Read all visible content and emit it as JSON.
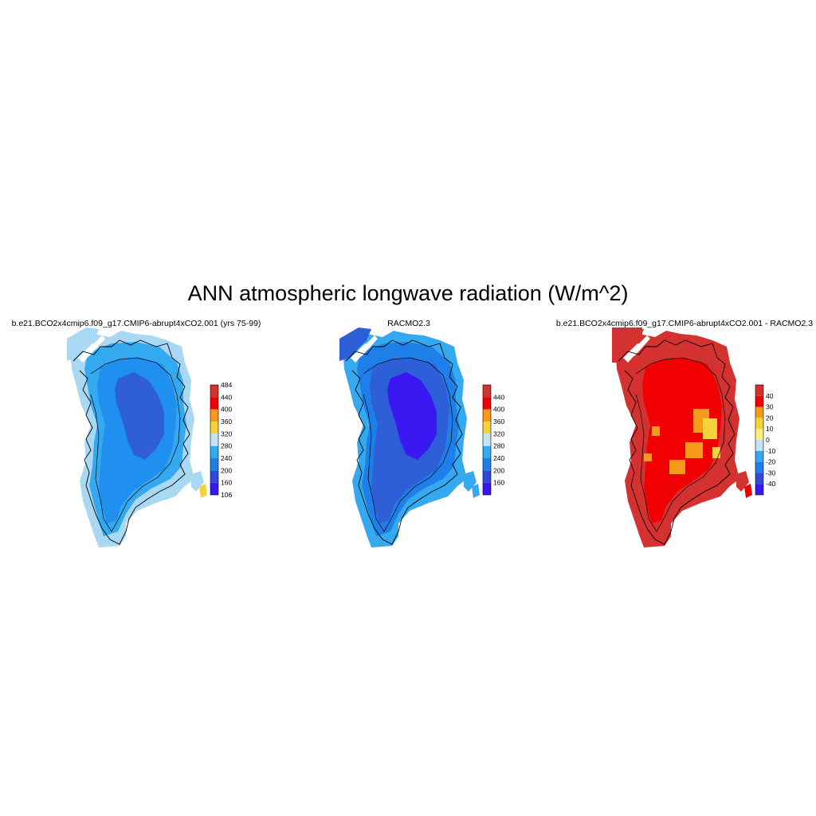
{
  "title": "ANN atmospheric longwave radiation (W/m^2)",
  "panels": [
    {
      "id": "model",
      "title": "b.e21.BCO2x4cmip6.f09_g17.CMIP6-abrupt4xCO2.001 (yrs 75-99)",
      "colorbar": {
        "colors": [
          "#3a18f2",
          "#2f4bd6",
          "#1f7fe8",
          "#35a9ef",
          "#c2e4f4",
          "#f7d33a",
          "#f59a1b",
          "#f00000",
          "#d43131"
        ],
        "labels": [
          "106",
          "160",
          "200",
          "240",
          "280",
          "320",
          "360",
          "400",
          "440",
          "484"
        ],
        "label_positions": "all-boundaries"
      },
      "colors": {
        "edge": "#a9d8f2",
        "outer": "#35a9ef",
        "mid": "#1f8ff0",
        "core": "#2f5fd8",
        "dark": "#2f5fd8",
        "speck": "#f7d33a"
      }
    },
    {
      "id": "racmo",
      "title": "RACMO2.3",
      "colorbar": {
        "colors": [
          "#3a18f2",
          "#2f4bd6",
          "#1f7fe8",
          "#35a9ef",
          "#c2e4f4",
          "#f7d33a",
          "#f59a1b",
          "#f00000",
          "#d43131"
        ],
        "labels": [
          "160",
          "200",
          "240",
          "280",
          "320",
          "360",
          "400",
          "440"
        ],
        "label_positions": "interior-boundaries"
      },
      "colors": {
        "edge": "#35a9ef",
        "outer": "#1f7fe8",
        "mid": "#2f5fd8",
        "core": "#3a18f2",
        "dark": "#3a18f2",
        "speck": "#35a9ef"
      }
    },
    {
      "id": "difference",
      "title": "b.e21.BCO2x4cmip6.f09_g17.CMIP6-abrupt4xCO2.001 - RACMO2.3",
      "colorbar": {
        "colors": [
          "#3a18f2",
          "#2f4bd6",
          "#1f7fe8",
          "#35a9ef",
          "#c2e4f4",
          "#fff07a",
          "#f7d33a",
          "#f59a1b",
          "#f00000",
          "#d43131"
        ],
        "labels": [
          "-40",
          "-30",
          "-20",
          "-10",
          "0",
          "10",
          "20",
          "30",
          "40"
        ],
        "label_positions": "interior-boundaries"
      },
      "colors": {
        "edge": "#d43131",
        "outer": "#d43131",
        "mid": "#f00000",
        "core": "#f00000",
        "dark": "#d43131",
        "speck": "#f00000",
        "accent1": "#f59a1b",
        "accent2": "#f7d33a"
      }
    }
  ]
}
